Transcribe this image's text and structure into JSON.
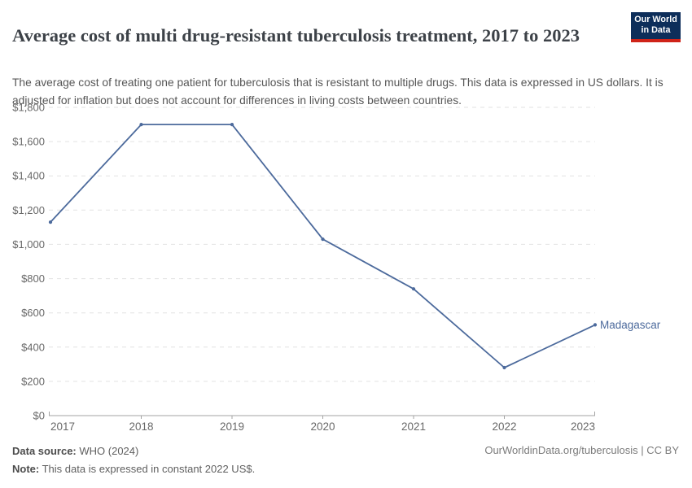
{
  "logo": {
    "line1": "Our World",
    "line2": "in Data"
  },
  "chart_data": {
    "type": "line",
    "title": "Average cost of multi drug-resistant tuberculosis treatment, 2017 to 2023",
    "subtitle": "The average cost of treating one patient for tuberculosis that is resistant to multiple drugs. This data is expressed in US dollars. It is adjusted for inflation but does not account for differences in living costs between countries.",
    "x": [
      2017,
      2018,
      2019,
      2020,
      2021,
      2022,
      2023
    ],
    "x_tick_labels": [
      "2017",
      "2018",
      "2019",
      "2020",
      "2021",
      "2022",
      "2023"
    ],
    "series": [
      {
        "name": "Madagascar",
        "values": [
          1130,
          1700,
          1700,
          1030,
          740,
          280,
          530
        ],
        "color": "#4C6A9C"
      }
    ],
    "unit": "US$ (constant 2022)",
    "ylim": [
      0,
      1800
    ],
    "y_tick_values": [
      0,
      200,
      400,
      600,
      800,
      1000,
      1200,
      1400,
      1600,
      1800
    ],
    "y_tick_labels": [
      "$0",
      "$200",
      "$400",
      "$600",
      "$800",
      "$1,000",
      "$1,200",
      "$1,400",
      "$1,600",
      "$1,800"
    ],
    "grid": "horizontal-dashed",
    "legend": "line-end-label",
    "xlabel": "",
    "ylabel": ""
  },
  "footer": {
    "datasource_label": "Data source:",
    "datasource_value": "WHO (2024)",
    "note_label": "Note:",
    "note_value": "This data is expressed in constant 2022 US$.",
    "credit": "OurWorldinData.org/tuberculosis | CC BY"
  },
  "colors": {
    "line": "#4C6A9C",
    "grid": "#e2e2e2",
    "axis": "#a3a3a3",
    "tick_label": "#696969",
    "title_text": "#3d4248",
    "subtitle_text": "#565656",
    "logo_bg": "#0d2e5a",
    "logo_accent": "#cf2318"
  }
}
